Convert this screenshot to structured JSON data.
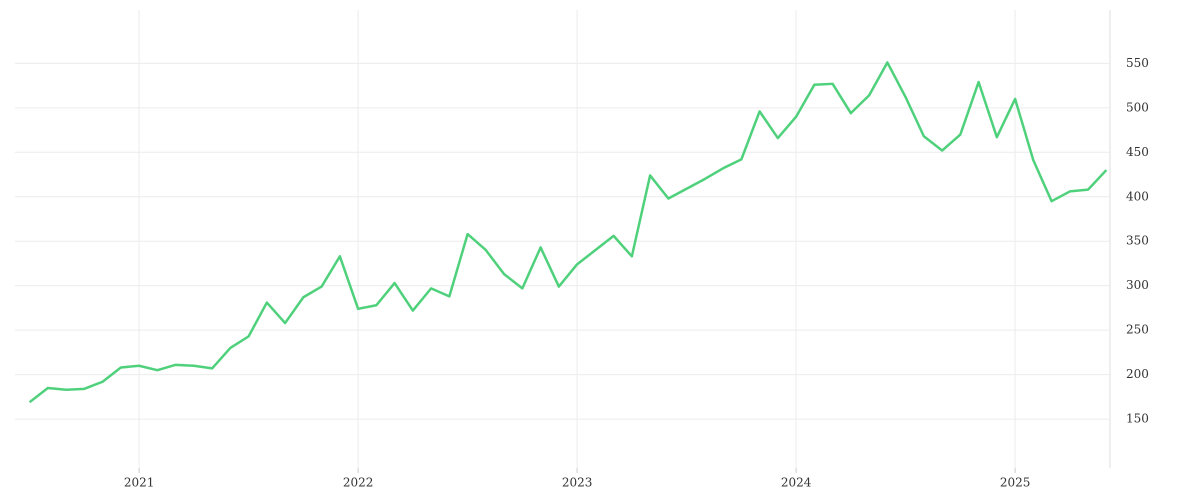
{
  "chart_data": {
    "type": "line",
    "x": [
      0,
      1,
      2,
      3,
      4,
      5,
      6,
      7,
      8,
      9,
      10,
      11,
      12,
      13,
      14,
      15,
      16,
      17,
      18,
      19,
      20,
      21,
      22,
      23,
      24,
      25,
      26,
      27,
      28,
      29,
      30,
      31,
      32,
      33,
      34,
      35,
      36,
      37,
      38,
      39,
      40,
      41,
      42,
      43,
      44,
      45,
      46,
      47,
      48,
      49,
      50,
      51,
      52,
      53,
      54,
      55,
      56,
      57,
      58,
      59
    ],
    "series": [
      {
        "color": "#4fd17c",
        "values": [
          169,
          185,
          183,
          184,
          192,
          208,
          210,
          205,
          211,
          210,
          207,
          230,
          243,
          281,
          258,
          287,
          299,
          333,
          274,
          278,
          303,
          272,
          297,
          288,
          358,
          340,
          313,
          297,
          343,
          299,
          324,
          340,
          356,
          333,
          424,
          398,
          409,
          420,
          432,
          442,
          496,
          466,
          490,
          526,
          527,
          494,
          514,
          551,
          512,
          468,
          452,
          470,
          529,
          467,
          510,
          441,
          395,
          406,
          408,
          430
        ]
      }
    ],
    "xlim": [
      -0.8,
      59.2
    ],
    "xticks": [
      {
        "value": 6,
        "label": "2021"
      },
      {
        "value": 18,
        "label": "2022"
      },
      {
        "value": 30,
        "label": "2023"
      },
      {
        "value": 42,
        "label": "2024"
      },
      {
        "value": 54,
        "label": "2025"
      }
    ],
    "ylim": [
      95,
      610
    ],
    "yticks": [
      150,
      200,
      250,
      300,
      350,
      400,
      450,
      500,
      550
    ],
    "grid": true
  }
}
